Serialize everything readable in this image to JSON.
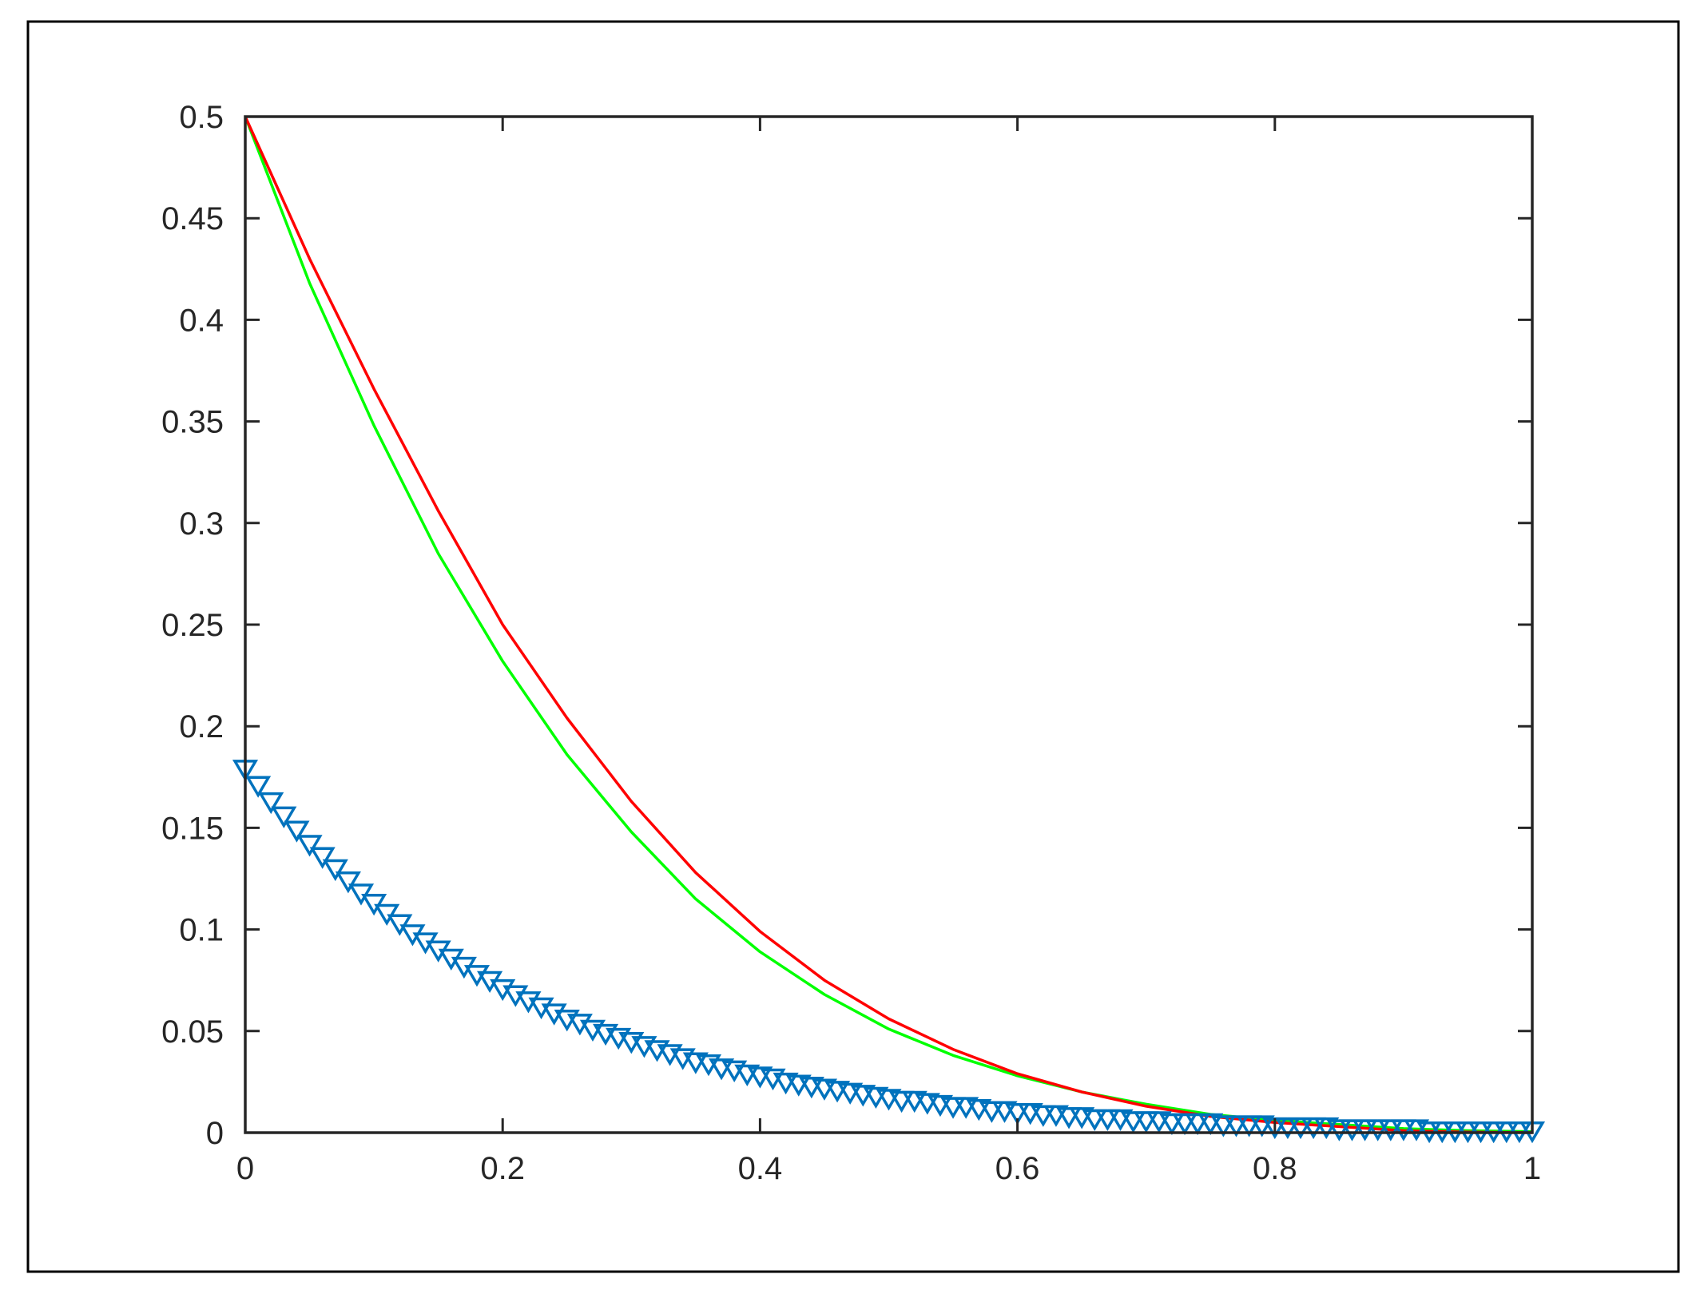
{
  "chart_data": {
    "type": "line",
    "title": "",
    "xlabel": "",
    "ylabel": "",
    "xlim": [
      0,
      1
    ],
    "ylim": [
      0,
      0.5
    ],
    "xticks": [
      0,
      0.2,
      0.4,
      0.6,
      0.8,
      1
    ],
    "xtick_labels": [
      "0",
      "0.2",
      "0.4",
      "0.6",
      "0.8",
      "1"
    ],
    "yticks": [
      0,
      0.05,
      0.1,
      0.15,
      0.2,
      0.25,
      0.3,
      0.35,
      0.4,
      0.45,
      0.5
    ],
    "ytick_labels": [
      "0",
      "0.05",
      "0.1",
      "0.15",
      "0.2",
      "0.25",
      "0.3",
      "0.35",
      "0.4",
      "0.45",
      "0.5"
    ],
    "grid": false,
    "legend": "none",
    "series": [
      {
        "color": "#00ff00",
        "style": "line",
        "x": [
          0,
          0.05,
          0.1,
          0.15,
          0.2,
          0.25,
          0.3,
          0.35,
          0.4,
          0.45,
          0.5,
          0.55,
          0.6,
          0.65,
          0.7,
          0.75,
          0.8,
          0.85,
          0.9,
          0.95,
          1
        ],
        "y": [
          0.5,
          0.418,
          0.348,
          0.285,
          0.232,
          0.186,
          0.148,
          0.115,
          0.089,
          0.068,
          0.051,
          0.038,
          0.028,
          0.02,
          0.014,
          0.009,
          0.006,
          0.004,
          0.002,
          0.001,
          0.0005
        ]
      },
      {
        "color": "#ff0000",
        "style": "line",
        "x": [
          0,
          0.05,
          0.1,
          0.15,
          0.2,
          0.25,
          0.3,
          0.35,
          0.4,
          0.45,
          0.5,
          0.55,
          0.6,
          0.65,
          0.7,
          0.75,
          0.8,
          0.85,
          0.9,
          0.95,
          1
        ],
        "y": [
          0.5,
          0.43,
          0.366,
          0.306,
          0.25,
          0.204,
          0.163,
          0.128,
          0.099,
          0.075,
          0.056,
          0.041,
          0.029,
          0.02,
          0.013,
          0.008,
          0.005,
          0.003,
          0.001,
          0.0003,
          0
        ]
      },
      {
        "color": "#0072bd",
        "style": "markers",
        "marker": "triangle-down",
        "x": [
          0,
          0.01,
          0.02,
          0.03,
          0.04,
          0.05,
          0.06,
          0.07,
          0.08,
          0.09,
          0.1,
          0.11,
          0.12,
          0.13,
          0.14,
          0.15,
          0.16,
          0.17,
          0.18,
          0.19,
          0.2,
          0.21,
          0.22,
          0.23,
          0.24,
          0.25,
          0.26,
          0.27,
          0.28,
          0.29,
          0.3,
          0.31,
          0.32,
          0.33,
          0.34,
          0.35,
          0.36,
          0.37,
          0.38,
          0.39,
          0.4,
          0.41,
          0.42,
          0.43,
          0.44,
          0.45,
          0.46,
          0.47,
          0.48,
          0.49,
          0.5,
          0.51,
          0.52,
          0.53,
          0.54,
          0.55,
          0.56,
          0.57,
          0.58,
          0.59,
          0.6,
          0.61,
          0.62,
          0.63,
          0.64,
          0.65,
          0.66,
          0.67,
          0.68,
          0.69,
          0.7,
          0.71,
          0.72,
          0.73,
          0.74,
          0.75,
          0.76,
          0.77,
          0.78,
          0.79,
          0.8,
          0.81,
          0.82,
          0.83,
          0.84,
          0.85,
          0.86,
          0.87,
          0.88,
          0.89,
          0.9,
          0.91,
          0.92,
          0.93,
          0.94,
          0.95,
          0.96,
          0.97,
          0.98,
          0.99,
          1
        ],
        "y": [
          0.179,
          0.171,
          0.163,
          0.156,
          0.149,
          0.142,
          0.136,
          0.13,
          0.124,
          0.118,
          0.113,
          0.108,
          0.103,
          0.098,
          0.094,
          0.09,
          0.086,
          0.082,
          0.078,
          0.075,
          0.071,
          0.068,
          0.065,
          0.062,
          0.059,
          0.056,
          0.054,
          0.051,
          0.049,
          0.047,
          0.045,
          0.043,
          0.041,
          0.039,
          0.037,
          0.035,
          0.034,
          0.032,
          0.031,
          0.029,
          0.028,
          0.027,
          0.025,
          0.024,
          0.023,
          0.022,
          0.021,
          0.02,
          0.019,
          0.018,
          0.017,
          0.016,
          0.016,
          0.015,
          0.014,
          0.013,
          0.013,
          0.012,
          0.011,
          0.011,
          0.01,
          0.01,
          0.009,
          0.009,
          0.008,
          0.008,
          0.007,
          0.007,
          0.007,
          0.006,
          0.006,
          0.006,
          0.005,
          0.005,
          0.005,
          0.005,
          0.004,
          0.004,
          0.004,
          0.004,
          0.003,
          0.003,
          0.003,
          0.003,
          0.003,
          0.002,
          0.002,
          0.002,
          0.002,
          0.002,
          0.002,
          0.002,
          0.001,
          0.001,
          0.001,
          0.001,
          0.001,
          0.001,
          0.001,
          0.001,
          0.001
        ]
      }
    ]
  }
}
